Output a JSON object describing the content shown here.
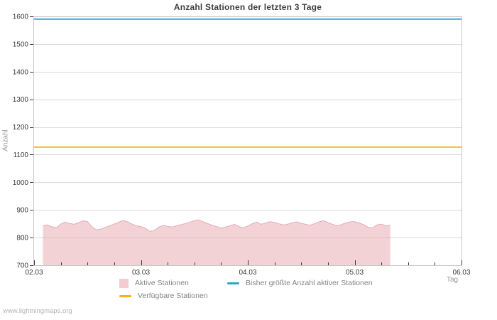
{
  "page": {
    "footer_link": "www.lightningmaps.org"
  },
  "chart_data": {
    "type": "area",
    "title": "Anzahl Stationen der letzten 3 Tage",
    "xlabel": "Tag",
    "ylabel": "Anzahl",
    "ylim": [
      700,
      1600
    ],
    "ytick_step": 100,
    "ytick_labels": [
      "700",
      "800",
      "900",
      "1000",
      "1100",
      "1200",
      "1300",
      "1400",
      "1500",
      "1600"
    ],
    "xtick_labels": [
      "02.03",
      "03.03",
      "04.03",
      "05.03",
      "06.03"
    ],
    "x_range_hours": [
      0,
      96
    ],
    "xtick_major_hours": 24,
    "xtick_minor_hours": 6,
    "grid": true,
    "legend_position": "bottom",
    "colors": {
      "grid": "#dadada",
      "frame": "#c6c6c6",
      "tick": "#3a3a3a",
      "area_fill": "rgba(230,160,170,0.48)",
      "area_edge": "rgba(213,128,140,0.55)"
    },
    "series": [
      {
        "name": "Aktive Stationen",
        "type": "area",
        "color": "#f2ccd1",
        "x_start_hour": 2,
        "x_step_hours": 1,
        "values": [
          843,
          846,
          839,
          836,
          849,
          856,
          851,
          848,
          854,
          861,
          858,
          839,
          828,
          831,
          837,
          843,
          849,
          856,
          862,
          857,
          849,
          843,
          840,
          834,
          823,
          826,
          838,
          845,
          841,
          838,
          843,
          847,
          851,
          856,
          861,
          864,
          857,
          851,
          845,
          840,
          835,
          838,
          843,
          848,
          840,
          836,
          842,
          851,
          856,
          848,
          853,
          858,
          855,
          850,
          846,
          849,
          854,
          857,
          852,
          848,
          845,
          851,
          857,
          861,
          855,
          848,
          843,
          847,
          853,
          857,
          858,
          853,
          847,
          838,
          835,
          846,
          849,
          843,
          845
        ]
      },
      {
        "name": "Bisher größte Anzahl aktiver Stationen",
        "type": "hline",
        "color": "#29a7c8",
        "value": 1590
      },
      {
        "name": "Verfügbare Stationen",
        "type": "hline",
        "color": "#fbaf17",
        "value": 1127
      }
    ]
  },
  "legend": {
    "items": [
      {
        "label": "Aktive Stationen",
        "swatch": "square",
        "color": "#f2ccd1"
      },
      {
        "label": "Bisher größte Anzahl aktiver Stationen",
        "swatch": "line",
        "color": "#29a7c8"
      },
      {
        "label": "Verfügbare Stationen",
        "swatch": "line",
        "color": "#fbaf17"
      }
    ]
  }
}
